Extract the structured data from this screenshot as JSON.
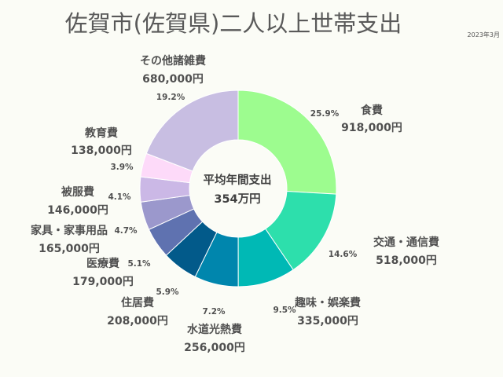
{
  "chart_data": {
    "type": "pie",
    "variant": "donut",
    "title": "佐賀市(佐賀県)二人以上世帯支出",
    "date": "2023年3月",
    "center_label": [
      "平均年間支出",
      "354万円"
    ],
    "slices": [
      {
        "label": "食費",
        "value_text": "918,000円",
        "value": 918000,
        "percent": "25.9%",
        "color": "#9dfc8f"
      },
      {
        "label": "交通・通信費",
        "value_text": "518,000円",
        "value": 518000,
        "percent": "14.6%",
        "color": "#2ddfac"
      },
      {
        "label": "趣味・娯楽費",
        "value_text": "335,000円",
        "value": 335000,
        "percent": "9.5%",
        "color": "#00b9b5"
      },
      {
        "label": "水道光熱費",
        "value_text": "256,000円",
        "value": 256000,
        "percent": "7.2%",
        "color": "#0086ad"
      },
      {
        "label": "住居費",
        "value_text": "208,000円",
        "value": 208000,
        "percent": "5.9%",
        "color": "#025a8a"
      },
      {
        "label": "医療費",
        "value_text": "179,000円",
        "value": 179000,
        "percent": "5.1%",
        "color": "#5f72b0"
      },
      {
        "label": "家具・家事用品",
        "value_text": "165,000円",
        "value": 165000,
        "percent": "4.7%",
        "color": "#9b98cc"
      },
      {
        "label": "被服費",
        "value_text": "146,000円",
        "value": 146000,
        "percent": "4.1%",
        "color": "#cbb8e6"
      },
      {
        "label": "教育費",
        "value_text": "138,000円",
        "value": 138000,
        "percent": "3.9%",
        "color": "#fddaf9"
      },
      {
        "label": "その他諸雑費",
        "value_text": "680,000円",
        "value": 680000,
        "percent": "19.2%",
        "color": "#c8bee2"
      }
    ]
  }
}
